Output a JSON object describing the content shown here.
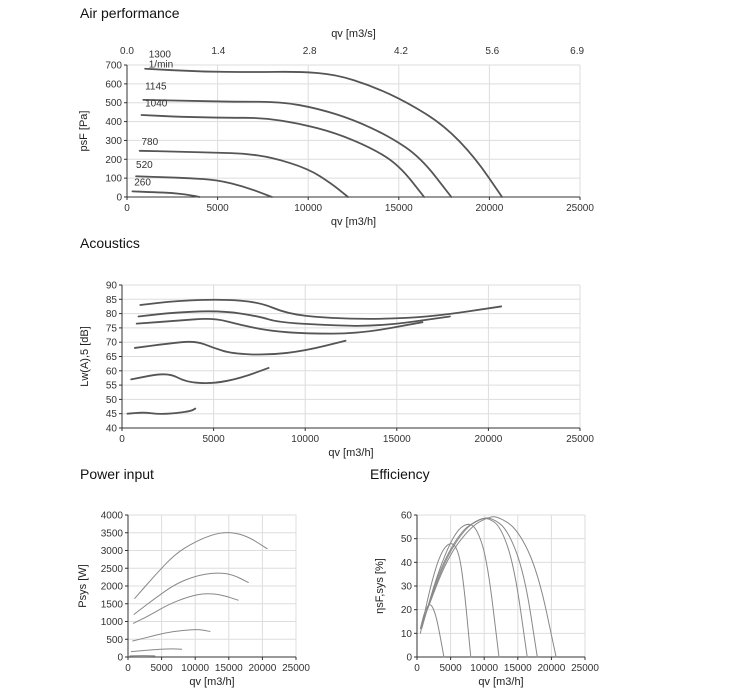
{
  "titles": {
    "air": "Air performance",
    "acoustics": "Acoustics",
    "power": "Power input",
    "efficiency": "Efficiency"
  },
  "colors": {
    "curve": "#555555",
    "grid": "#dddddd",
    "axis": "#333333",
    "thin_curve": "#888888"
  },
  "chart_data": [
    {
      "id": "air",
      "type": "line",
      "xlabel": "qv [m3/h]",
      "ylabel": "psF [Pa]",
      "xlim": [
        0,
        25000
      ],
      "ylim": [
        0,
        700
      ],
      "xticks": [
        0,
        5000,
        10000,
        15000,
        20000,
        25000
      ],
      "yticks": [
        0,
        100,
        200,
        300,
        400,
        500,
        600,
        700
      ],
      "grid": true,
      "top_axis": {
        "label": "qv [m3/s]",
        "ticks": [
          {
            "label": "0.0",
            "x": 0
          },
          {
            "label": "1.4",
            "x": 5040
          },
          {
            "label": "2.8",
            "x": 10080
          },
          {
            "label": "4.2",
            "x": 15120
          },
          {
            "label": "5.6",
            "x": 20160
          },
          {
            "label": "6.9",
            "x": 24840
          }
        ]
      },
      "series": [
        {
          "name": "1300",
          "sublabel": "1/min",
          "label_x": 1200,
          "label_y": 740,
          "points": [
            [
              1000,
              680
            ],
            [
              4000,
              665
            ],
            [
              7000,
              662
            ],
            [
              9500,
              665
            ],
            [
              11500,
              650
            ],
            [
              13500,
              590
            ],
            [
              15500,
              500
            ],
            [
              17500,
              380
            ],
            [
              19200,
              210
            ],
            [
              20700,
              0
            ]
          ]
        },
        {
          "name": "1145",
          "label_x": 1000,
          "label_y": 570,
          "points": [
            [
              900,
              515
            ],
            [
              3500,
              510
            ],
            [
              6000,
              505
            ],
            [
              8500,
              505
            ],
            [
              10500,
              470
            ],
            [
              12500,
              410
            ],
            [
              14500,
              320
            ],
            [
              16200,
              210
            ],
            [
              17900,
              0
            ]
          ]
        },
        {
          "name": "1040",
          "label_x": 1000,
          "label_y": 480,
          "points": [
            [
              800,
              435
            ],
            [
              3000,
              425
            ],
            [
              5500,
              420
            ],
            [
              7500,
              420
            ],
            [
              9500,
              390
            ],
            [
              11500,
              340
            ],
            [
              13500,
              260
            ],
            [
              15000,
              170
            ],
            [
              16400,
              0
            ]
          ]
        },
        {
          "name": "780",
          "label_x": 800,
          "label_y": 275,
          "points": [
            [
              700,
              245
            ],
            [
              3000,
              240
            ],
            [
              5000,
              235
            ],
            [
              6500,
              230
            ],
            [
              8000,
              210
            ],
            [
              10000,
              150
            ],
            [
              11300,
              70
            ],
            [
              12200,
              0
            ]
          ]
        },
        {
          "name": "520",
          "label_x": 500,
          "label_y": 155,
          "points": [
            [
              500,
              110
            ],
            [
              2000,
              105
            ],
            [
              3500,
              100
            ],
            [
              5000,
              90
            ],
            [
              6500,
              55
            ],
            [
              8000,
              0
            ]
          ]
        },
        {
          "name": "260",
          "label_x": 400,
          "label_y": 60,
          "points": [
            [
              300,
              30
            ],
            [
              1500,
              25
            ],
            [
              2500,
              22
            ],
            [
              3500,
              10
            ],
            [
              4000,
              0
            ]
          ]
        }
      ]
    },
    {
      "id": "acoustics",
      "type": "line",
      "xlabel": "qv [m3/h]",
      "ylabel": "Lw(A),5 [dB]",
      "xlim": [
        0,
        25000
      ],
      "ylim": [
        40,
        90
      ],
      "xticks": [
        0,
        5000,
        10000,
        15000,
        20000,
        25000
      ],
      "yticks": [
        40,
        45,
        50,
        55,
        60,
        65,
        70,
        75,
        80,
        85,
        90
      ],
      "grid": true,
      "series": [
        {
          "name": "",
          "points": [
            [
              1000,
              83
            ],
            [
              3000,
              84.5
            ],
            [
              5500,
              85
            ],
            [
              7500,
              84
            ],
            [
              9000,
              80
            ],
            [
              11000,
              78.5
            ],
            [
              14000,
              78
            ],
            [
              17000,
              79
            ],
            [
              20700,
              82.5
            ]
          ]
        },
        {
          "name": "",
          "points": [
            [
              900,
              79
            ],
            [
              3000,
              80.5
            ],
            [
              5500,
              81
            ],
            [
              7500,
              79
            ],
            [
              8500,
              77
            ],
            [
              11000,
              76
            ],
            [
              14000,
              75.5
            ],
            [
              17900,
              79
            ]
          ]
        },
        {
          "name": "",
          "points": [
            [
              800,
              76.5
            ],
            [
              3000,
              77.5
            ],
            [
              5000,
              78.5
            ],
            [
              6500,
              76
            ],
            [
              8000,
              74
            ],
            [
              10000,
              73
            ],
            [
              13000,
              73
            ],
            [
              16400,
              77
            ]
          ]
        },
        {
          "name": "",
          "points": [
            [
              700,
              68
            ],
            [
              2500,
              69.5
            ],
            [
              4000,
              70.5
            ],
            [
              5000,
              68
            ],
            [
              6000,
              66
            ],
            [
              8000,
              65.5
            ],
            [
              10000,
              67
            ],
            [
              12200,
              70.5
            ]
          ]
        },
        {
          "name": "",
          "points": [
            [
              500,
              57
            ],
            [
              2500,
              59.5
            ],
            [
              3500,
              56
            ],
            [
              5000,
              55.5
            ],
            [
              6500,
              57.5
            ],
            [
              8000,
              61
            ]
          ]
        },
        {
          "name": "",
          "points": [
            [
              300,
              45
            ],
            [
              1200,
              45.5
            ],
            [
              2000,
              44.8
            ],
            [
              3000,
              45.2
            ],
            [
              3800,
              46
            ],
            [
              4000,
              46.8
            ]
          ]
        }
      ]
    },
    {
      "id": "power",
      "type": "line",
      "xlabel": "qv [m3/h]",
      "ylabel": "Psys [W]",
      "xlim": [
        0,
        25000
      ],
      "ylim": [
        0,
        4000
      ],
      "xticks": [
        0,
        5000,
        10000,
        15000,
        20000,
        25000
      ],
      "yticks": [
        0,
        500,
        1000,
        1500,
        2000,
        2500,
        3000,
        3500,
        4000
      ],
      "grid": true,
      "series": [
        {
          "name": "",
          "points": [
            [
              1000,
              1650
            ],
            [
              4000,
              2300
            ],
            [
              7000,
              2900
            ],
            [
              10000,
              3250
            ],
            [
              13000,
              3480
            ],
            [
              15500,
              3520
            ],
            [
              18000,
              3380
            ],
            [
              20700,
              3050
            ]
          ]
        },
        {
          "name": "",
          "points": [
            [
              900,
              1200
            ],
            [
              4000,
              1650
            ],
            [
              7000,
              2050
            ],
            [
              10000,
              2280
            ],
            [
              13000,
              2380
            ],
            [
              15500,
              2330
            ],
            [
              17900,
              2100
            ]
          ]
        },
        {
          "name": "",
          "points": [
            [
              800,
              950
            ],
            [
              3000,
              1150
            ],
            [
              6000,
              1480
            ],
            [
              9000,
              1700
            ],
            [
              11500,
              1800
            ],
            [
              14000,
              1750
            ],
            [
              16400,
              1600
            ]
          ]
        },
        {
          "name": "",
          "points": [
            [
              700,
              450
            ],
            [
              3000,
              560
            ],
            [
              5500,
              680
            ],
            [
              8000,
              750
            ],
            [
              10500,
              780
            ],
            [
              12200,
              720
            ]
          ]
        },
        {
          "name": "",
          "points": [
            [
              500,
              150
            ],
            [
              2500,
              190
            ],
            [
              5000,
              220
            ],
            [
              6500,
              230
            ],
            [
              8000,
              220
            ]
          ]
        },
        {
          "name": "",
          "points": [
            [
              300,
              30
            ],
            [
              1500,
              40
            ],
            [
              3000,
              40
            ],
            [
              4000,
              30
            ]
          ]
        }
      ]
    },
    {
      "id": "efficiency",
      "type": "line",
      "xlabel": "qv [m3/h]",
      "ylabel": "ηsF,sys [%]",
      "xlim": [
        0,
        25000
      ],
      "ylim": [
        0,
        60
      ],
      "xticks": [
        0,
        5000,
        10000,
        15000,
        20000,
        25000
      ],
      "yticks": [
        0,
        10,
        20,
        30,
        40,
        50,
        60
      ],
      "grid": true,
      "series": [
        {
          "name": "",
          "points": [
            [
              500,
              12
            ],
            [
              1200,
              20
            ],
            [
              2000,
              23
            ],
            [
              2800,
              18
            ],
            [
              3500,
              8
            ],
            [
              4000,
              0
            ]
          ]
        },
        {
          "name": "",
          "points": [
            [
              500,
              10
            ],
            [
              2000,
              30
            ],
            [
              3500,
              44
            ],
            [
              5000,
              49
            ],
            [
              6200,
              45
            ],
            [
              7000,
              30
            ],
            [
              8000,
              0
            ]
          ]
        },
        {
          "name": "",
          "points": [
            [
              700,
              12
            ],
            [
              3000,
              35
            ],
            [
              5500,
              52
            ],
            [
              7500,
              57
            ],
            [
              9000,
              54
            ],
            [
              10500,
              40
            ],
            [
              12200,
              0
            ]
          ]
        },
        {
          "name": "",
          "points": [
            [
              800,
              14
            ],
            [
              3500,
              38
            ],
            [
              6500,
              53
            ],
            [
              9000,
              58
            ],
            [
              10500,
              59
            ],
            [
              12500,
              55
            ],
            [
              14500,
              38
            ],
            [
              16400,
              0
            ]
          ]
        },
        {
          "name": "",
          "points": [
            [
              900,
              15
            ],
            [
              4000,
              40
            ],
            [
              7000,
              54
            ],
            [
              9500,
              58.5
            ],
            [
              11000,
              59
            ],
            [
              13500,
              54
            ],
            [
              16000,
              35
            ],
            [
              17900,
              0
            ]
          ]
        },
        {
          "name": "",
          "points": [
            [
              1000,
              16
            ],
            [
              4500,
              42
            ],
            [
              8000,
              55
            ],
            [
              10500,
              59
            ],
            [
              12000,
              59.5
            ],
            [
              15000,
              54
            ],
            [
              18000,
              36
            ],
            [
              20700,
              0
            ]
          ]
        }
      ]
    }
  ]
}
